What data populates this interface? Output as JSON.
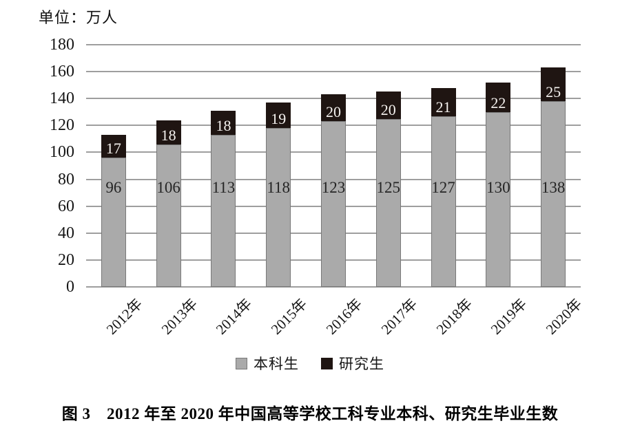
{
  "unit_label": "单位：万人",
  "caption": "图 3　2012 年至 2020 年中国高等学校工科专业本科、研究生毕业生数",
  "legend": {
    "items": [
      {
        "label": "本科生",
        "color": "#aaaaaa",
        "border": "#787878"
      },
      {
        "label": "研究生",
        "color": "#1f1512",
        "border": "#1f1512"
      }
    ]
  },
  "chart_data": {
    "type": "bar",
    "stacked": true,
    "title": "图 3　2012 年至 2020 年中国高等学校工科专业本科、研究生毕业生数",
    "unit": "单位：万人",
    "categories": [
      "2012年",
      "2013年",
      "2014年",
      "2015年",
      "2016年",
      "2017年",
      "2018年",
      "2019年",
      "2020年"
    ],
    "series": [
      {
        "name": "本科生",
        "color": "#aaaaaa",
        "values": [
          96,
          106,
          113,
          118,
          123,
          125,
          127,
          130,
          138
        ]
      },
      {
        "name": "研究生",
        "color": "#1f1512",
        "values": [
          17,
          18,
          18,
          19,
          20,
          20,
          21,
          22,
          25
        ]
      }
    ],
    "ylim": [
      0,
      180
    ],
    "ytick_step": 20,
    "yticks": [
      0,
      20,
      40,
      60,
      80,
      100,
      120,
      140,
      160,
      180
    ],
    "grid": true,
    "legend_position": "bottom",
    "xlabel": "",
    "ylabel": ""
  }
}
